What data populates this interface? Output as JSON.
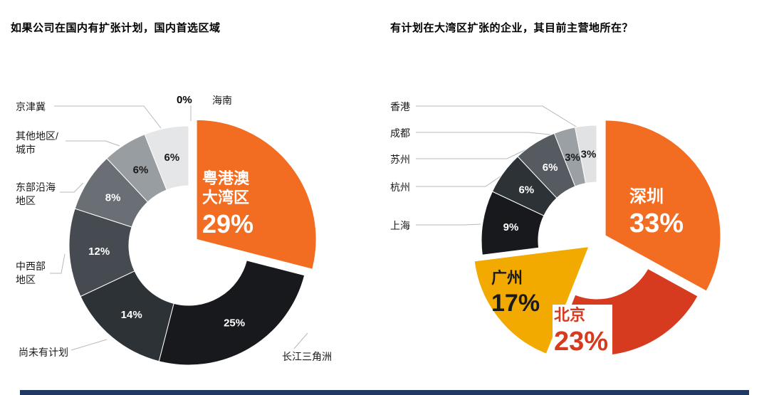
{
  "page": {
    "footer_bar_color": "#1F3864",
    "background": "#FFFFFF"
  },
  "chart_data": [
    {
      "type": "pie",
      "donut": true,
      "title": "如果公司在国内有扩张计划，国内首选区域",
      "legend_position": "callout-labels",
      "segments": [
        {
          "label": "粤港澳大湾区",
          "value": 29,
          "pct": "29%",
          "color": "#F26C21",
          "exploded": true,
          "show_pct": false
        },
        {
          "label": "长江三角洲",
          "value": 25,
          "pct": "25%",
          "color": "#17191D",
          "exploded": false,
          "show_pct": true
        },
        {
          "label": "尚未有计划",
          "value": 14,
          "pct": "14%",
          "color": "#2D3237",
          "exploded": false,
          "show_pct": true
        },
        {
          "label": "中西部地区",
          "value": 12,
          "pct": "12%",
          "color": "#464B51",
          "exploded": false,
          "show_pct": true
        },
        {
          "label": "东部沿海地区",
          "value": 8,
          "pct": "8%",
          "color": "#6A6F75",
          "exploded": false,
          "show_pct": true
        },
        {
          "label": "其他地区/城市",
          "value": 6,
          "pct": "6%",
          "color": "#989DA2",
          "exploded": false,
          "show_pct": true
        },
        {
          "label": "京津冀",
          "value": 6,
          "pct": "6%",
          "color": "#E4E6E8",
          "exploded": false,
          "show_pct": true
        },
        {
          "label": "海南",
          "value": 0,
          "pct": "0%",
          "color": "#FFFFFF",
          "exploded": false,
          "show_pct": false
        }
      ]
    },
    {
      "type": "pie",
      "donut": true,
      "title": "有计划在大湾区扩张的企业，其目前主营地所在？",
      "legend_position": "callout-labels",
      "segments": [
        {
          "label": "深圳",
          "value": 33,
          "pct": "33%",
          "color": "#F26C21",
          "exploded": true,
          "show_pct": false
        },
        {
          "label": "北京",
          "value": 23,
          "pct": "23%",
          "color": "#D63A1F",
          "exploded": false,
          "show_pct": false
        },
        {
          "label": "广州",
          "value": 17,
          "pct": "17%",
          "color": "#F2A900",
          "exploded": true,
          "show_pct": false
        },
        {
          "label": "上海",
          "value": 9,
          "pct": "9%",
          "color": "#17191D",
          "exploded": false,
          "show_pct": true
        },
        {
          "label": "杭州",
          "value": 6,
          "pct": "6%",
          "color": "#2D3237",
          "exploded": false,
          "show_pct": true
        },
        {
          "label": "苏州",
          "value": 6,
          "pct": "6%",
          "color": "#565B61",
          "exploded": false,
          "show_pct": true
        },
        {
          "label": "成都",
          "value": 3,
          "pct": "3%",
          "color": "#9BA0A5",
          "exploded": false,
          "show_pct": true
        },
        {
          "label": "香港",
          "value": 3,
          "pct": "3%",
          "color": "#E0E2E4",
          "exploded": false,
          "show_pct": true
        }
      ]
    }
  ]
}
